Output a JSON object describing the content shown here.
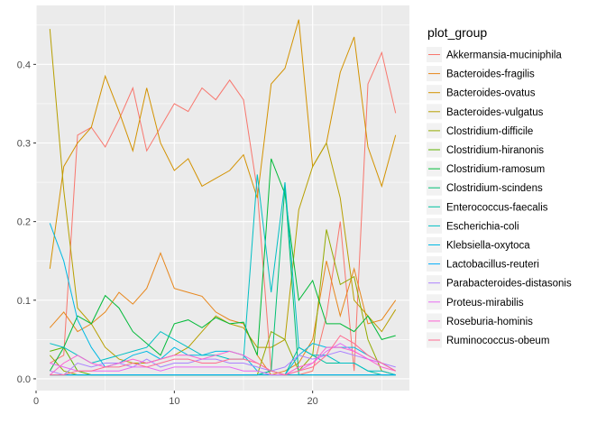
{
  "chart_data": {
    "type": "line",
    "xlim": [
      0,
      27
    ],
    "ylim": [
      -0.015,
      0.475
    ],
    "x_ticks": [
      0,
      10,
      20
    ],
    "y_ticks": [
      0.0,
      0.1,
      0.2,
      0.3,
      0.4
    ],
    "x_tick_labels": [
      "0",
      "10",
      "20"
    ],
    "y_tick_labels": [
      "0.0",
      "0.1",
      "0.2",
      "0.3",
      "0.4"
    ],
    "grid": true,
    "legend_title": "plot_group",
    "legend_position": "right",
    "x": [
      1,
      2,
      3,
      4,
      5,
      6,
      7,
      8,
      9,
      10,
      11,
      12,
      13,
      14,
      15,
      16,
      17,
      18,
      19,
      20,
      21,
      22,
      23,
      24,
      25,
      26
    ],
    "series": [
      {
        "name": "Akkermansia-muciniphila",
        "color": "#F8766D",
        "values": [
          0.02,
          0.03,
          0.31,
          0.32,
          0.295,
          0.33,
          0.37,
          0.29,
          0.32,
          0.35,
          0.34,
          0.37,
          0.355,
          0.38,
          0.355,
          0.24,
          0.01,
          0.005,
          0.005,
          0.01,
          0.08,
          0.2,
          0.01,
          0.375,
          0.415,
          0.338
        ]
      },
      {
        "name": "Bacteroides-fragilis",
        "color": "#E7861B",
        "values": [
          0.065,
          0.085,
          0.06,
          0.07,
          0.085,
          0.11,
          0.095,
          0.115,
          0.16,
          0.115,
          0.11,
          0.105,
          0.085,
          0.075,
          0.07,
          0.03,
          0.005,
          0.01,
          0.02,
          0.05,
          0.15,
          0.08,
          0.14,
          0.07,
          0.075,
          0.1
        ]
      },
      {
        "name": "Bacteroides-ovatus",
        "color": "#D39200",
        "values": [
          0.14,
          0.27,
          0.3,
          0.32,
          0.385,
          0.34,
          0.29,
          0.37,
          0.3,
          0.265,
          0.28,
          0.245,
          0.255,
          0.265,
          0.285,
          0.23,
          0.375,
          0.395,
          0.457,
          0.27,
          0.3,
          0.39,
          0.435,
          0.295,
          0.245,
          0.31
        ]
      },
      {
        "name": "Bacteroides-vulgatus",
        "color": "#B79F00",
        "values": [
          0.445,
          0.24,
          0.09,
          0.07,
          0.04,
          0.025,
          0.02,
          0.02,
          0.025,
          0.03,
          0.04,
          0.06,
          0.08,
          0.07,
          0.065,
          0.04,
          0.04,
          0.05,
          0.215,
          0.27,
          0.3,
          0.23,
          0.1,
          0.08,
          0.06,
          0.088
        ]
      },
      {
        "name": "Clostridium-difficile",
        "color": "#93AA00",
        "values": [
          0.03,
          0.01,
          0.005,
          0.005,
          0.005,
          0.005,
          0.005,
          0.005,
          0.005,
          0.005,
          0.005,
          0.005,
          0.005,
          0.005,
          0.005,
          0.005,
          0.06,
          0.05,
          0.01,
          0.03,
          0.19,
          0.12,
          0.13,
          0.05,
          0.01,
          0.005
        ]
      },
      {
        "name": "Clostridium-hiranonis",
        "color": "#5EB300",
        "values": [
          0.035,
          0.04,
          0.01,
          0.005,
          0.005,
          0.005,
          0.005,
          0.005,
          0.005,
          0.005,
          0.005,
          0.005,
          0.005,
          0.005,
          0.005,
          0.005,
          0.005,
          0.005,
          0.005,
          0.005,
          0.005,
          0.005,
          0.005,
          0.005,
          0.005,
          0.005
        ]
      },
      {
        "name": "Clostridium-ramosum",
        "color": "#00BA38",
        "values": [
          0.01,
          0.04,
          0.08,
          0.07,
          0.106,
          0.09,
          0.06,
          0.045,
          0.03,
          0.07,
          0.075,
          0.065,
          0.078,
          0.07,
          0.072,
          0.03,
          0.28,
          0.235,
          0.1,
          0.125,
          0.07,
          0.07,
          0.06,
          0.08,
          0.05,
          0.055
        ]
      },
      {
        "name": "Clostridium-scindens",
        "color": "#00BF74",
        "values": [
          0.005,
          0.005,
          0.005,
          0.005,
          0.005,
          0.005,
          0.005,
          0.005,
          0.005,
          0.005,
          0.005,
          0.005,
          0.005,
          0.005,
          0.005,
          0.005,
          0.01,
          0.245,
          0.005,
          0.005,
          0.005,
          0.005,
          0.005,
          0.005,
          0.005,
          0.005
        ]
      },
      {
        "name": "Enterococcus-faecalis",
        "color": "#00C19F",
        "values": [
          0.005,
          0.005,
          0.005,
          0.005,
          0.005,
          0.005,
          0.005,
          0.005,
          0.005,
          0.005,
          0.005,
          0.005,
          0.005,
          0.005,
          0.005,
          0.005,
          0.01,
          0.005,
          0.04,
          0.03,
          0.02,
          0.02,
          0.02,
          0.01,
          0.005,
          0.005
        ]
      },
      {
        "name": "Escherichia-coli",
        "color": "#00BFC4",
        "values": [
          0.045,
          0.04,
          0.03,
          0.02,
          0.025,
          0.03,
          0.035,
          0.04,
          0.06,
          0.05,
          0.04,
          0.03,
          0.03,
          0.025,
          0.025,
          0.26,
          0.11,
          0.25,
          0.04,
          0.03,
          0.03,
          0.02,
          0.02,
          0.01,
          0.01,
          0.005
        ]
      },
      {
        "name": "Klebsiella-oxytoca",
        "color": "#00B9E3",
        "values": [
          0.198,
          0.15,
          0.075,
          0.04,
          0.015,
          0.02,
          0.03,
          0.035,
          0.025,
          0.04,
          0.03,
          0.03,
          0.035,
          0.035,
          0.03,
          0.01,
          0.005,
          0.005,
          0.03,
          0.045,
          0.04,
          0.04,
          0.04,
          0.03,
          0.02,
          0.01
        ]
      },
      {
        "name": "Lactobacillus-reuteri",
        "color": "#00ADFA",
        "values": [
          0.005,
          0.005,
          0.005,
          0.005,
          0.005,
          0.005,
          0.005,
          0.005,
          0.005,
          0.005,
          0.005,
          0.005,
          0.005,
          0.005,
          0.005,
          0.005,
          0.005,
          0.005,
          0.005,
          0.005,
          0.005,
          0.005,
          0.005,
          0.005,
          0.005,
          0.005
        ]
      },
      {
        "name": "Parabacteroides-distasonis",
        "color": "#AB82FF",
        "values": [
          0.01,
          0.005,
          0.02,
          0.015,
          0.02,
          0.02,
          0.015,
          0.025,
          0.015,
          0.02,
          0.02,
          0.025,
          0.025,
          0.02,
          0.02,
          0.015,
          0.01,
          0.015,
          0.03,
          0.025,
          0.03,
          0.035,
          0.03,
          0.025,
          0.02,
          0.015
        ]
      },
      {
        "name": "Proteus-mirabilis",
        "color": "#E76BF3",
        "values": [
          0.02,
          0.015,
          0.01,
          0.01,
          0.01,
          0.01,
          0.015,
          0.015,
          0.01,
          0.015,
          0.015,
          0.015,
          0.015,
          0.015,
          0.01,
          0.01,
          0.005,
          0.005,
          0.01,
          0.02,
          0.035,
          0.045,
          0.035,
          0.025,
          0.02,
          0.01
        ]
      },
      {
        "name": "Roseburia-hominis",
        "color": "#FD61D1",
        "values": [
          0.005,
          0.02,
          0.03,
          0.02,
          0.015,
          0.02,
          0.025,
          0.02,
          0.025,
          0.03,
          0.03,
          0.025,
          0.03,
          0.035,
          0.03,
          0.02,
          0.01,
          0.005,
          0.015,
          0.02,
          0.04,
          0.04,
          0.035,
          0.025,
          0.015,
          0.01
        ]
      },
      {
        "name": "Ruminococcus-obeum",
        "color": "#FF6C91",
        "values": [
          0.005,
          0.005,
          0.01,
          0.01,
          0.015,
          0.015,
          0.02,
          0.015,
          0.02,
          0.025,
          0.025,
          0.02,
          0.02,
          0.025,
          0.025,
          0.02,
          0.01,
          0.005,
          0.01,
          0.015,
          0.03,
          0.055,
          0.045,
          0.03,
          0.02,
          0.01
        ]
      }
    ]
  }
}
